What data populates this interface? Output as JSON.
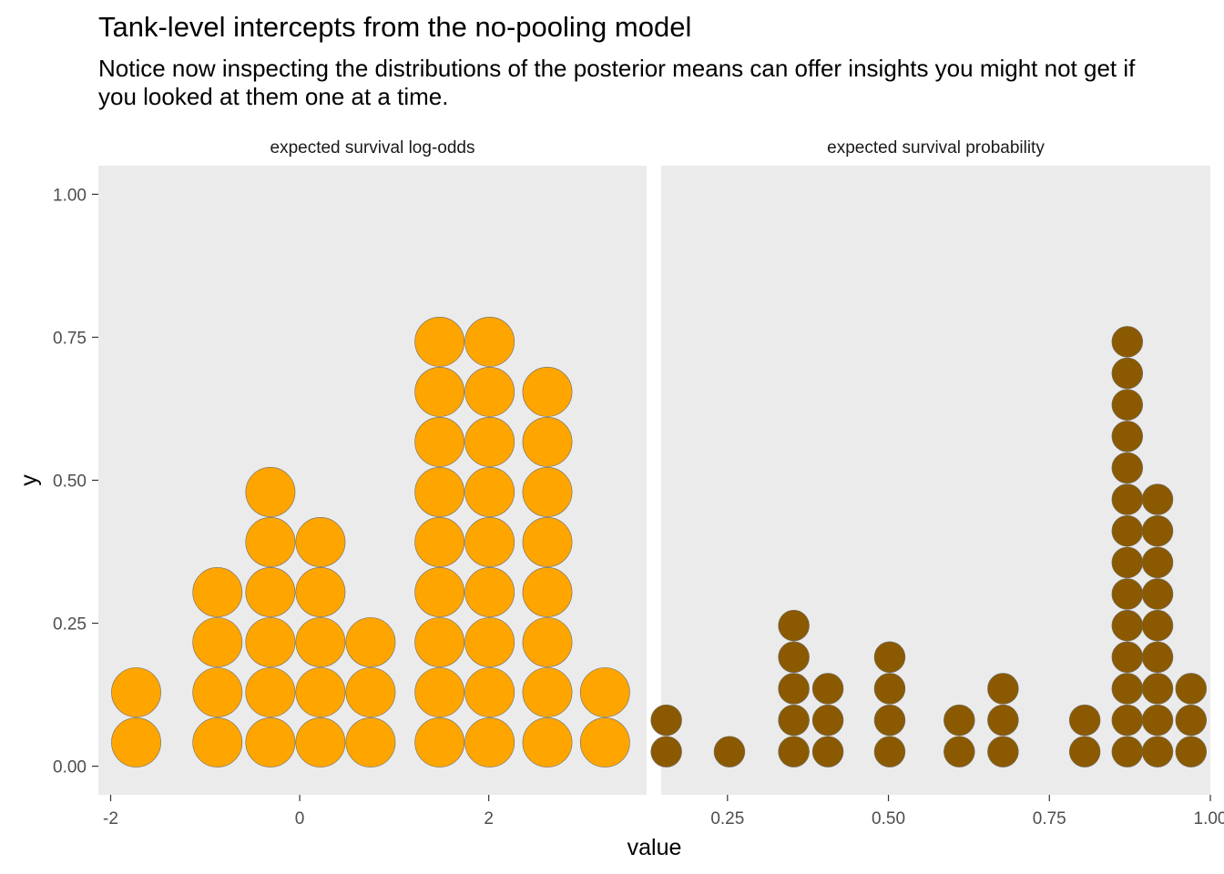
{
  "chart_data": {
    "type": "dotplot",
    "title": "Tank-level intercepts from the no-pooling model",
    "subtitle": "Notice now inspecting the distributions of the posterior means can offer insights you might not get if you looked at them one at a time.",
    "xlabel": "value",
    "ylabel": "y",
    "grid": false,
    "y_ticks": [
      "0.00",
      "0.25",
      "0.50",
      "0.75",
      "1.00"
    ],
    "ylim": [
      -0.05,
      1.05
    ],
    "panels": [
      {
        "strip_label": "expected survival log-odds",
        "color": "#FFA500",
        "xlim": [
          -2.13,
          3.67
        ],
        "x_ticks": [
          -2,
          0,
          2
        ],
        "x_tick_labels": [
          "-2",
          "0",
          "2"
        ],
        "bin_width": 0.53,
        "stacks": [
          {
            "x": -1.73,
            "count": 2
          },
          {
            "x": -0.87,
            "count": 4
          },
          {
            "x": -0.31,
            "count": 6
          },
          {
            "x": 0.22,
            "count": 5
          },
          {
            "x": 0.75,
            "count": 3
          },
          {
            "x": 1.48,
            "count": 9
          },
          {
            "x": 2.01,
            "count": 9
          },
          {
            "x": 2.62,
            "count": 8
          },
          {
            "x": 3.23,
            "count": 2
          }
        ]
      },
      {
        "strip_label": "expected survival probability",
        "color": "#8B5A00",
        "xlim": [
          0.147,
          1.0
        ],
        "x_ticks": [
          0.25,
          0.5,
          0.75,
          1.0
        ],
        "x_tick_labels": [
          "0.25",
          "0.50",
          "0.75",
          "1.00"
        ],
        "bin_width": 0.049,
        "stacks": [
          {
            "x": 0.155,
            "count": 2
          },
          {
            "x": 0.253,
            "count": 1
          },
          {
            "x": 0.353,
            "count": 5
          },
          {
            "x": 0.406,
            "count": 3
          },
          {
            "x": 0.502,
            "count": 4
          },
          {
            "x": 0.61,
            "count": 2
          },
          {
            "x": 0.678,
            "count": 3
          },
          {
            "x": 0.805,
            "count": 2
          },
          {
            "x": 0.871,
            "count": 14
          },
          {
            "x": 0.918,
            "count": 9
          },
          {
            "x": 0.97,
            "count": 3
          }
        ]
      }
    ]
  }
}
